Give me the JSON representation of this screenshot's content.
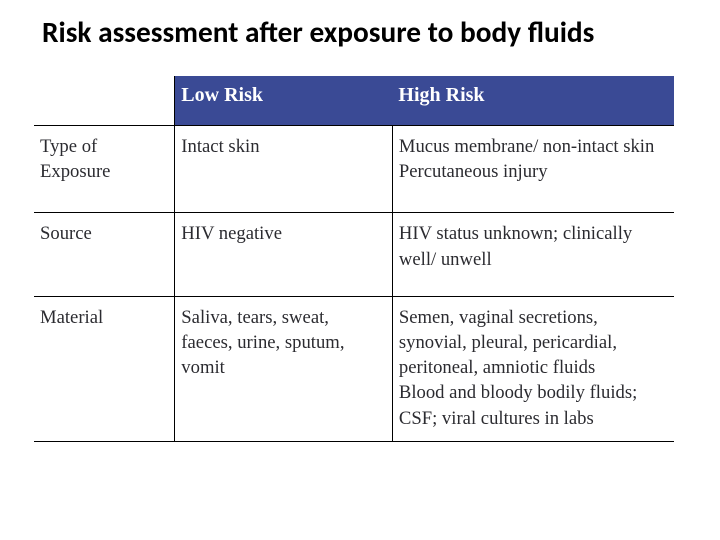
{
  "title": {
    "text": "Risk assessment after exposure to body fluids",
    "fontsize_pt": 22
  },
  "colors": {
    "header_bg": "#3a4a95",
    "header_fg": "#ffffff",
    "body_fg": "#2b2b30",
    "title_fg": "#000000"
  },
  "table": {
    "font_family": "serif",
    "body_fontsize_pt": 14,
    "header_fontsize_pt": 15,
    "columns": [
      {
        "width_pct": 22
      },
      {
        "label": "Low Risk",
        "width_pct": 34
      },
      {
        "label": "High Risk",
        "width_pct": 44
      }
    ],
    "rows": [
      {
        "label": "Type of Exposure",
        "low": "Intact skin",
        "high": "Mucus membrane/ non-intact skin\nPercutaneous injury"
      },
      {
        "label": "Source",
        "low": "HIV negative",
        "high": "HIV status unknown; clinically well/ unwell"
      },
      {
        "label": "Material",
        "low": "Saliva, tears, sweat, faeces, urine, sputum, vomit",
        "high": "Semen, vaginal secretions, synovial, pleural, pericardial, peritoneal, amniotic fluids\nBlood and bloody bodily fluids; CSF; viral cultures in labs"
      }
    ]
  }
}
